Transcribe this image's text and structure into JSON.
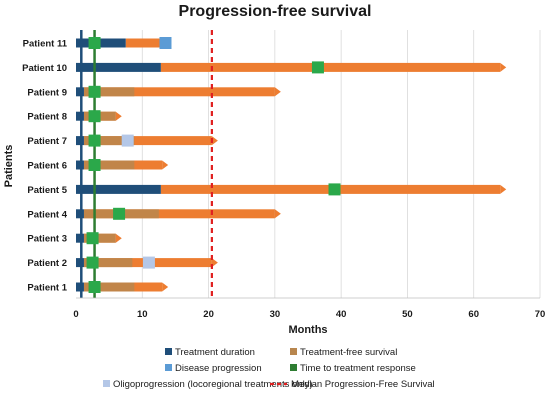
{
  "chart_data": {
    "type": "bar",
    "title": "Progression-free survival",
    "xlabel": "Months",
    "ylabel": "Patients",
    "xlim": [
      0,
      70
    ],
    "xticks": [
      0,
      10,
      20,
      30,
      40,
      50,
      60,
      70
    ],
    "grid": "vertical",
    "legend_position": "bottom",
    "colors": {
      "treatment_duration": "#1f4e79",
      "treatment_free_survival": "#ed7d31",
      "overlap": "#b8864e",
      "disease_progression": "#5b9bd5",
      "time_to_response": "#2e7d32",
      "response_marker": "#2ba84a",
      "oligoprogression": "#b4c7e7",
      "median_pfs": "#e02020"
    },
    "legend": [
      {
        "key": "treatment_duration",
        "label": "Treatment duration",
        "style": "square"
      },
      {
        "key": "overlap",
        "label": "Treatment-free survival",
        "style": "square"
      },
      {
        "key": "disease_progression",
        "label": "Disease progression",
        "style": "square"
      },
      {
        "key": "time_to_response",
        "label": "Time to treatment response",
        "style": "square"
      },
      {
        "key": "oligoprogression",
        "label": "Oligoprogression (locoregional treatments only)",
        "style": "square"
      },
      {
        "key": "median_pfs",
        "label": "Median Progression-Free Survival",
        "style": "dashed"
      }
    ],
    "median_pfs_months": 20.5,
    "response_lines_months": [
      0.8,
      2.8
    ],
    "patients": [
      {
        "name": "Patient 11",
        "treatment_duration": 7.5,
        "pfs": 13,
        "arrow": false,
        "response": 2.8,
        "progression": 13.5,
        "oligo": null
      },
      {
        "name": "Patient 10",
        "treatment_duration": 12.8,
        "pfs": 64,
        "arrow": true,
        "response": 36.5,
        "progression": null,
        "oligo": null
      },
      {
        "name": "Patient 9",
        "treatment_duration": 1.2,
        "pfs": 30,
        "arrow": true,
        "response": 2.8,
        "progression": null,
        "oligo": null
      },
      {
        "name": "Patient 8",
        "treatment_duration": 1.2,
        "pfs": 6,
        "arrow": true,
        "response": 2.8,
        "progression": null,
        "oligo": null
      },
      {
        "name": "Patient 7",
        "treatment_duration": 1.2,
        "pfs": 20.5,
        "arrow": true,
        "response": 2.8,
        "progression": null,
        "oligo": 7.8
      },
      {
        "name": "Patient 6",
        "treatment_duration": 1.2,
        "pfs": 13,
        "arrow": true,
        "response": 2.8,
        "progression": null,
        "oligo": null
      },
      {
        "name": "Patient 5",
        "treatment_duration": 12.8,
        "pfs": 64,
        "arrow": true,
        "response": 39,
        "progression": null,
        "oligo": null
      },
      {
        "name": "Patient 4",
        "treatment_duration": 1.2,
        "pfs": 30,
        "arrow": true,
        "response": 6.5,
        "progression": null,
        "oligo": null
      },
      {
        "name": "Patient 3",
        "treatment_duration": 1.2,
        "pfs": 6,
        "arrow": true,
        "response": 2.5,
        "progression": null,
        "oligo": null
      },
      {
        "name": "Patient 2",
        "treatment_duration": 1.2,
        "pfs": 20.5,
        "arrow": true,
        "response": 2.5,
        "progression": null,
        "oligo": 11
      },
      {
        "name": "Patient 1",
        "treatment_duration": 1.2,
        "pfs": 13,
        "arrow": true,
        "response": 2.8,
        "progression": null,
        "oligo": null
      }
    ]
  }
}
